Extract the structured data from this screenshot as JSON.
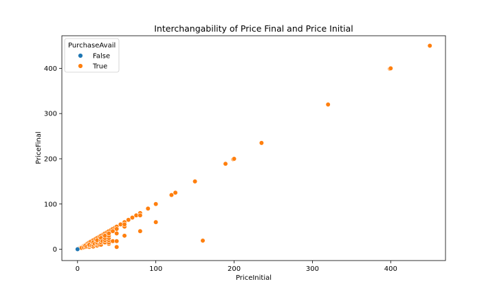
{
  "chart_data": {
    "type": "scatter",
    "title": "Interchangability of Price Final and Price Initial",
    "xlabel": "PriceInitial",
    "ylabel": "PriceFinal",
    "xlim": [
      -20,
      470
    ],
    "ylim": [
      -25,
      472
    ],
    "xticks": [
      0,
      100,
      200,
      300,
      400
    ],
    "yticks": [
      0,
      100,
      200,
      300,
      400
    ],
    "grid": false,
    "legend": {
      "title": "PurchaseAvail",
      "placement": "top-left"
    },
    "series": [
      {
        "name": "False",
        "color": "#1f77b4",
        "points": [
          [
            0,
            0
          ]
        ]
      },
      {
        "name": "True",
        "color": "#ff7f0e",
        "points": [
          [
            1,
            1
          ],
          [
            2,
            2
          ],
          [
            3,
            3
          ],
          [
            4,
            4
          ],
          [
            5,
            5
          ],
          [
            6,
            6
          ],
          [
            7,
            7
          ],
          [
            8,
            8
          ],
          [
            9,
            9
          ],
          [
            10,
            10
          ],
          [
            11,
            11
          ],
          [
            12,
            12
          ],
          [
            13,
            13
          ],
          [
            15,
            15
          ],
          [
            17,
            17
          ],
          [
            20,
            20
          ],
          [
            23,
            23
          ],
          [
            25,
            25
          ],
          [
            28,
            28
          ],
          [
            30,
            30
          ],
          [
            33,
            33
          ],
          [
            35,
            35
          ],
          [
            38,
            38
          ],
          [
            40,
            40
          ],
          [
            43,
            43
          ],
          [
            45,
            45
          ],
          [
            48,
            48
          ],
          [
            50,
            50
          ],
          [
            55,
            55
          ],
          [
            60,
            60
          ],
          [
            65,
            65
          ],
          [
            70,
            70
          ],
          [
            75,
            75
          ],
          [
            80,
            80
          ],
          [
            90,
            90
          ],
          [
            100,
            100
          ],
          [
            120,
            120
          ],
          [
            125,
            125
          ],
          [
            150,
            150
          ],
          [
            189,
            189
          ],
          [
            199,
            199
          ],
          [
            200,
            200
          ],
          [
            235,
            235
          ],
          [
            320,
            320
          ],
          [
            399,
            399
          ],
          [
            400,
            400
          ],
          [
            450,
            450
          ],
          [
            5,
            3
          ],
          [
            8,
            4
          ],
          [
            10,
            5
          ],
          [
            10,
            8
          ],
          [
            12,
            6
          ],
          [
            15,
            5
          ],
          [
            15,
            8
          ],
          [
            15,
            10
          ],
          [
            18,
            8
          ],
          [
            20,
            6
          ],
          [
            20,
            10
          ],
          [
            20,
            15
          ],
          [
            22,
            12
          ],
          [
            25,
            8
          ],
          [
            25,
            12
          ],
          [
            25,
            15
          ],
          [
            25,
            20
          ],
          [
            28,
            10
          ],
          [
            30,
            10
          ],
          [
            30,
            15
          ],
          [
            30,
            20
          ],
          [
            30,
            25
          ],
          [
            32,
            18
          ],
          [
            35,
            15
          ],
          [
            35,
            20
          ],
          [
            35,
            25
          ],
          [
            35,
            30
          ],
          [
            40,
            12
          ],
          [
            40,
            15
          ],
          [
            40,
            20
          ],
          [
            40,
            25
          ],
          [
            40,
            30
          ],
          [
            40,
            35
          ],
          [
            45,
            18
          ],
          [
            45,
            40
          ],
          [
            50,
            5
          ],
          [
            50,
            18
          ],
          [
            50,
            35
          ],
          [
            50,
            45
          ],
          [
            60,
            30
          ],
          [
            60,
            50
          ],
          [
            60,
            55
          ],
          [
            80,
            40
          ],
          [
            80,
            75
          ],
          [
            100,
            60
          ],
          [
            160,
            19
          ]
        ]
      }
    ]
  }
}
